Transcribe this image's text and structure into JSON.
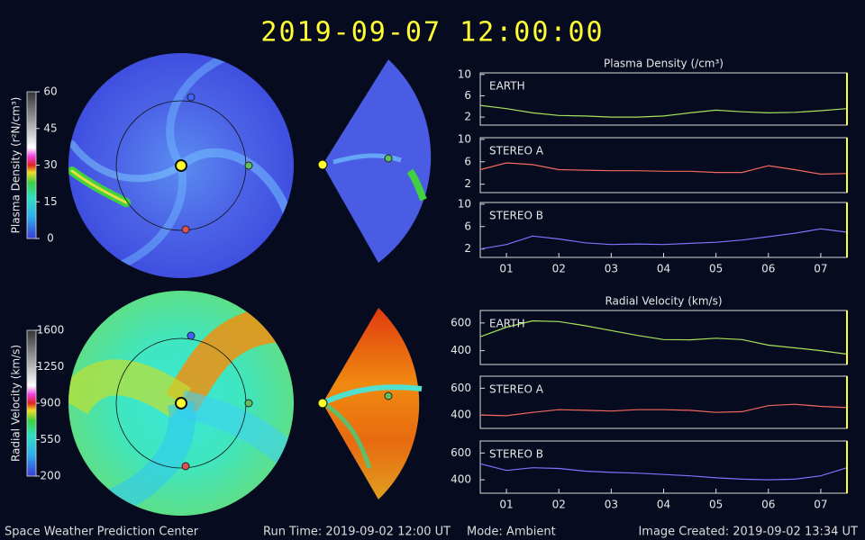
{
  "title": "2019-09-07 12:00:00",
  "footer": {
    "center": "Space Weather Prediction Center",
    "run_time": "Run Time: 2019-09-02 12:00 UT",
    "mode": "Mode: Ambient",
    "created": "Image Created: 2019-09-02 13:34 UT"
  },
  "colorbars": [
    {
      "label": "Plasma Density (r²N/cm³)",
      "lim": [
        0,
        60
      ],
      "ticks": [
        0,
        15,
        30,
        45,
        60
      ]
    },
    {
      "label": "Radial Velocity (km/s)",
      "lim": [
        200,
        1600
      ],
      "ticks": [
        200,
        550,
        900,
        1250,
        1600
      ]
    }
  ],
  "chart_data": [
    {
      "type": "line",
      "title": "Plasma Density (/cm³)",
      "x": [
        0.5,
        1,
        1.5,
        2,
        2.5,
        3,
        3.5,
        4,
        4.5,
        5,
        5.5,
        6,
        6.5,
        7,
        7.5
      ],
      "xlim": [
        0.5,
        7.5
      ],
      "ylim": [
        0.5,
        10.3
      ],
      "yticks": [
        2,
        6,
        10
      ],
      "series": [
        {
          "name": "EARTH",
          "color": "#a6e35c",
          "values": [
            4.2,
            3.6,
            2.8,
            2.3,
            2.2,
            2.0,
            2.0,
            2.2,
            2.8,
            3.3,
            3.0,
            2.8,
            2.9,
            3.2,
            3.6
          ]
        }
      ]
    },
    {
      "type": "line",
      "x": [
        0.5,
        1,
        1.5,
        2,
        2.5,
        3,
        3.5,
        4,
        4.5,
        5,
        5.5,
        6,
        6.5,
        7,
        7.5
      ],
      "xlim": [
        0.5,
        7.5
      ],
      "ylim": [
        0.5,
        10.3
      ],
      "yticks": [
        2,
        6,
        10
      ],
      "series": [
        {
          "name": "STEREO A",
          "color": "#f26a5e",
          "values": [
            4.6,
            5.8,
            5.5,
            4.6,
            4.5,
            4.4,
            4.4,
            4.3,
            4.3,
            4.1,
            4.1,
            5.3,
            4.6,
            3.8,
            3.9
          ]
        }
      ]
    },
    {
      "type": "line",
      "x": [
        0.5,
        1,
        1.5,
        2,
        2.5,
        3,
        3.5,
        4,
        4.5,
        5,
        5.5,
        6,
        6.5,
        7,
        7.5
      ],
      "xlim": [
        0.5,
        7.5
      ],
      "ylim": [
        0.5,
        10.3
      ],
      "yticks": [
        2,
        6,
        10
      ],
      "xticks": [
        {
          "value": 1,
          "label": "01"
        },
        {
          "value": 2,
          "label": "02"
        },
        {
          "value": 3,
          "label": "03"
        },
        {
          "value": 4,
          "label": "04"
        },
        {
          "value": 5,
          "label": "05"
        },
        {
          "value": 6,
          "label": "06"
        },
        {
          "value": 7,
          "label": "07"
        }
      ],
      "series": [
        {
          "name": "STEREO B",
          "color": "#7a74ff",
          "values": [
            2.0,
            2.8,
            4.3,
            3.8,
            3.1,
            2.8,
            2.9,
            2.8,
            3.0,
            3.2,
            3.6,
            4.2,
            4.8,
            5.6,
            5.0
          ]
        }
      ]
    },
    {
      "type": "line",
      "title": "Radial Velocity (km/s)",
      "x": [
        0.5,
        1,
        1.5,
        2,
        2.5,
        3,
        3.5,
        4,
        4.5,
        5,
        5.5,
        6,
        6.5,
        7,
        7.5
      ],
      "xlim": [
        0.5,
        7.5
      ],
      "ylim": [
        300,
        690
      ],
      "yticks": [
        400,
        600
      ],
      "series": [
        {
          "name": "EARTH",
          "color": "#a6e35c",
          "values": [
            500,
            570,
            615,
            610,
            580,
            545,
            510,
            480,
            478,
            490,
            480,
            440,
            420,
            400,
            375
          ]
        }
      ]
    },
    {
      "type": "line",
      "x": [
        0.5,
        1,
        1.5,
        2,
        2.5,
        3,
        3.5,
        4,
        4.5,
        5,
        5.5,
        6,
        6.5,
        7,
        7.5
      ],
      "xlim": [
        0.5,
        7.5
      ],
      "ylim": [
        300,
        690
      ],
      "yticks": [
        400,
        600
      ],
      "series": [
        {
          "name": "STEREO A",
          "color": "#f26a5e",
          "values": [
            400,
            395,
            420,
            440,
            435,
            430,
            440,
            440,
            435,
            420,
            425,
            470,
            480,
            465,
            455
          ]
        }
      ]
    },
    {
      "type": "line",
      "x": [
        0.5,
        1,
        1.5,
        2,
        2.5,
        3,
        3.5,
        4,
        4.5,
        5,
        5.5,
        6,
        6.5,
        7,
        7.5
      ],
      "xlim": [
        0.5,
        7.5
      ],
      "ylim": [
        300,
        690
      ],
      "yticks": [
        400,
        600
      ],
      "xticks": [
        {
          "value": 1,
          "label": "01"
        },
        {
          "value": 2,
          "label": "02"
        },
        {
          "value": 3,
          "label": "03"
        },
        {
          "value": 4,
          "label": "04"
        },
        {
          "value": 5,
          "label": "05"
        },
        {
          "value": 6,
          "label": "06"
        },
        {
          "value": 7,
          "label": "07"
        }
      ],
      "series": [
        {
          "name": "STEREO B",
          "color": "#7a74ff",
          "values": [
            520,
            470,
            490,
            485,
            465,
            455,
            450,
            440,
            430,
            415,
            405,
            400,
            405,
            430,
            490
          ]
        }
      ]
    }
  ]
}
